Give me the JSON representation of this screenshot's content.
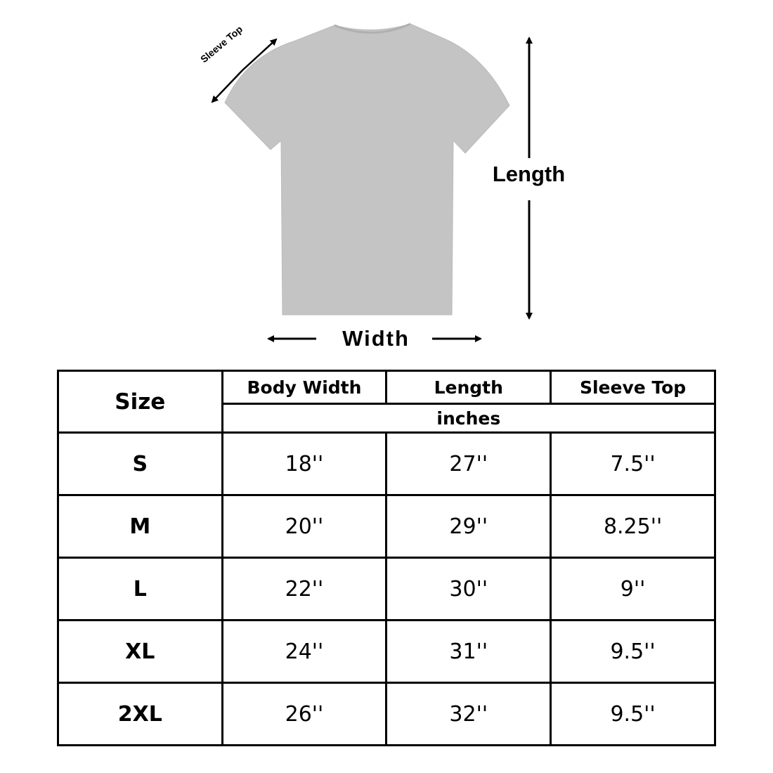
{
  "diagram": {
    "garment": "t-shirt",
    "garment_color": "#c4c4c4",
    "labels": {
      "sleeve_top": "Sleeve Top",
      "length": "Length",
      "width": "Width"
    }
  },
  "table": {
    "size_header": "Size",
    "columns": [
      "Body Width",
      "Length",
      "Sleeve Top"
    ],
    "unit": "inches",
    "rows": [
      {
        "size": "S",
        "values": [
          "18''",
          "27''",
          "7.5''"
        ]
      },
      {
        "size": "M",
        "values": [
          "20''",
          "29''",
          "8.25''"
        ]
      },
      {
        "size": "L",
        "values": [
          "22''",
          "30''",
          "9''"
        ]
      },
      {
        "size": "XL",
        "values": [
          "24''",
          "31''",
          "9.5''"
        ]
      },
      {
        "size": "2XL",
        "values": [
          "26''",
          "32''",
          "9.5''"
        ]
      }
    ]
  }
}
